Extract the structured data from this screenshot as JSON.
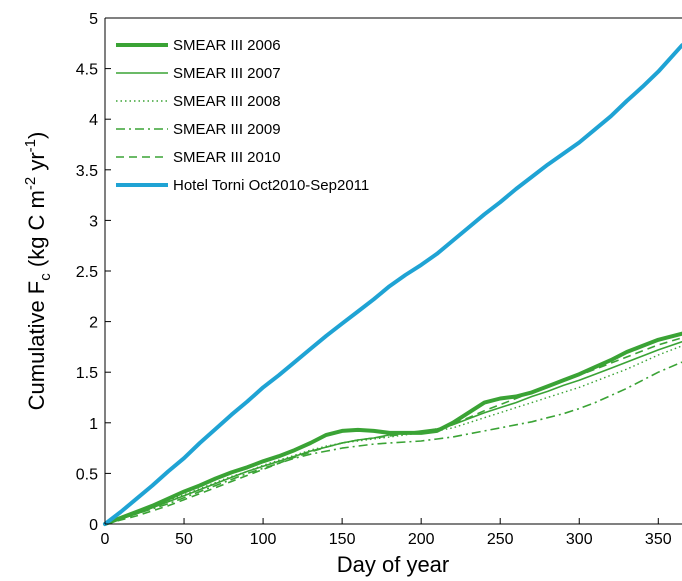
{
  "chart_data": {
    "type": "line",
    "title": "",
    "xlabel": "Day of year",
    "ylabel": {
      "main": "Cumulative F",
      "sub": "c",
      "unit_open": " (kg C m",
      "exp1": "-2",
      "unit_mid": " yr",
      "exp2": "-1",
      "unit_close": ")"
    },
    "xlim": [
      0,
      365
    ],
    "ylim": [
      0,
      5
    ],
    "xticks": [
      "0",
      "50",
      "100",
      "150",
      "200",
      "250",
      "300",
      "350"
    ],
    "yticks": [
      "0",
      "0.5",
      "1",
      "1.5",
      "2",
      "2.5",
      "3",
      "3.5",
      "4",
      "4.5",
      "5"
    ],
    "grid": false,
    "legend_position": "top-left",
    "series": [
      {
        "name": "SMEAR III 2006",
        "color": "#3aa335",
        "style": "solid-thick",
        "x": [
          0,
          10,
          20,
          30,
          40,
          50,
          60,
          70,
          80,
          90,
          100,
          110,
          120,
          130,
          140,
          150,
          160,
          170,
          180,
          190,
          200,
          210,
          220,
          230,
          240,
          250,
          260,
          270,
          280,
          290,
          300,
          310,
          320,
          330,
          340,
          350,
          365
        ],
        "y": [
          0,
          0.06,
          0.12,
          0.18,
          0.25,
          0.32,
          0.38,
          0.45,
          0.51,
          0.56,
          0.62,
          0.67,
          0.73,
          0.8,
          0.88,
          0.92,
          0.93,
          0.92,
          0.9,
          0.9,
          0.9,
          0.92,
          1.0,
          1.1,
          1.2,
          1.24,
          1.26,
          1.3,
          1.36,
          1.42,
          1.48,
          1.55,
          1.62,
          1.7,
          1.76,
          1.82,
          1.88
        ]
      },
      {
        "name": "SMEAR III 2007",
        "color": "#3aa335",
        "style": "solid",
        "x": [
          0,
          10,
          20,
          30,
          40,
          50,
          60,
          70,
          80,
          90,
          100,
          110,
          120,
          130,
          140,
          150,
          160,
          170,
          180,
          190,
          200,
          210,
          220,
          230,
          240,
          250,
          260,
          270,
          280,
          290,
          300,
          310,
          320,
          330,
          340,
          350,
          365
        ],
        "y": [
          0,
          0.05,
          0.1,
          0.16,
          0.22,
          0.28,
          0.34,
          0.4,
          0.46,
          0.52,
          0.57,
          0.62,
          0.67,
          0.72,
          0.76,
          0.8,
          0.83,
          0.85,
          0.88,
          0.9,
          0.92,
          0.94,
          0.98,
          1.04,
          1.1,
          1.15,
          1.2,
          1.26,
          1.31,
          1.37,
          1.42,
          1.48,
          1.54,
          1.6,
          1.66,
          1.72,
          1.8
        ]
      },
      {
        "name": "SMEAR III 2008",
        "color": "#3aa335",
        "style": "dotted",
        "x": [
          0,
          10,
          20,
          30,
          40,
          50,
          60,
          70,
          80,
          90,
          100,
          110,
          120,
          130,
          140,
          150,
          160,
          170,
          180,
          190,
          200,
          210,
          220,
          230,
          240,
          250,
          260,
          270,
          280,
          290,
          300,
          310,
          320,
          330,
          340,
          350,
          365
        ],
        "y": [
          0,
          0.06,
          0.11,
          0.17,
          0.23,
          0.29,
          0.35,
          0.41,
          0.47,
          0.52,
          0.58,
          0.63,
          0.68,
          0.73,
          0.77,
          0.8,
          0.82,
          0.84,
          0.86,
          0.88,
          0.9,
          0.92,
          0.95,
          1.0,
          1.05,
          1.1,
          1.15,
          1.2,
          1.25,
          1.3,
          1.35,
          1.41,
          1.47,
          1.53,
          1.6,
          1.67,
          1.76
        ]
      },
      {
        "name": "SMEAR III 2009",
        "color": "#3aa335",
        "style": "dashdot",
        "x": [
          0,
          10,
          20,
          30,
          40,
          50,
          60,
          70,
          80,
          90,
          100,
          110,
          120,
          130,
          140,
          150,
          160,
          170,
          180,
          190,
          200,
          210,
          220,
          230,
          240,
          250,
          260,
          270,
          280,
          290,
          300,
          310,
          320,
          330,
          340,
          350,
          365
        ],
        "y": [
          0,
          0.05,
          0.1,
          0.15,
          0.2,
          0.26,
          0.32,
          0.38,
          0.44,
          0.5,
          0.55,
          0.6,
          0.65,
          0.69,
          0.72,
          0.75,
          0.77,
          0.79,
          0.8,
          0.81,
          0.82,
          0.84,
          0.86,
          0.89,
          0.92,
          0.95,
          0.98,
          1.01,
          1.05,
          1.09,
          1.14,
          1.2,
          1.27,
          1.34,
          1.42,
          1.5,
          1.6
        ]
      },
      {
        "name": "SMEAR III 2010",
        "color": "#3aa335",
        "style": "dashed",
        "x": [
          0,
          10,
          20,
          30,
          40,
          50,
          60,
          70,
          80,
          90,
          100,
          110,
          120,
          130,
          140,
          150,
          160,
          170,
          180,
          190,
          200,
          210,
          220,
          230,
          240,
          250,
          260,
          270,
          280,
          290,
          300,
          310,
          320,
          330,
          340,
          350,
          365
        ],
        "y": [
          0,
          0.04,
          0.08,
          0.13,
          0.18,
          0.24,
          0.3,
          0.36,
          0.42,
          0.48,
          0.54,
          0.6,
          0.66,
          0.71,
          0.76,
          0.8,
          0.83,
          0.85,
          0.87,
          0.89,
          0.91,
          0.94,
          0.99,
          1.05,
          1.12,
          1.18,
          1.24,
          1.3,
          1.36,
          1.42,
          1.47,
          1.53,
          1.59,
          1.65,
          1.71,
          1.77,
          1.84
        ]
      },
      {
        "name": "Hotel Torni Oct2010-Sep2011",
        "color": "#1fa3d4",
        "style": "solid-thick",
        "x": [
          0,
          10,
          20,
          30,
          40,
          50,
          60,
          70,
          80,
          90,
          100,
          110,
          120,
          130,
          140,
          150,
          160,
          170,
          180,
          190,
          200,
          210,
          220,
          230,
          240,
          250,
          260,
          270,
          280,
          290,
          300,
          310,
          320,
          330,
          340,
          350,
          365
        ],
        "y": [
          0,
          0.12,
          0.25,
          0.38,
          0.52,
          0.65,
          0.8,
          0.94,
          1.08,
          1.21,
          1.35,
          1.47,
          1.6,
          1.73,
          1.86,
          1.98,
          2.1,
          2.22,
          2.35,
          2.46,
          2.56,
          2.67,
          2.8,
          2.93,
          3.06,
          3.18,
          3.31,
          3.43,
          3.55,
          3.66,
          3.77,
          3.9,
          4.03,
          4.18,
          4.32,
          4.47,
          4.73
        ]
      }
    ]
  }
}
